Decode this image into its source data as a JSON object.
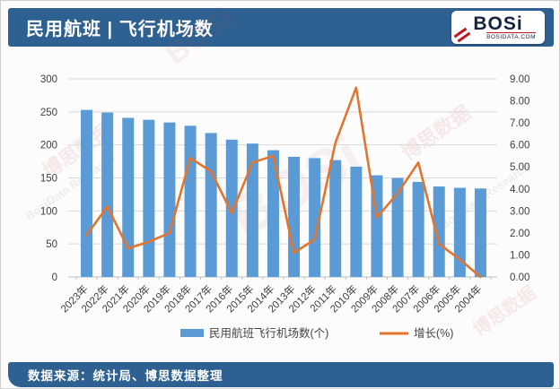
{
  "header": {
    "title": "民用航班 | 飞行机场数",
    "logo": {
      "wordmark": "BOSi",
      "domain": "BOSIDATA.COM"
    }
  },
  "footer": {
    "source_text": "数据来源：统计局、博思数据整理"
  },
  "watermark": {
    "text_cn": "博思数据",
    "text_en": "BosiData Research",
    "logo_text": "BOSi"
  },
  "colors": {
    "bar": "#5B9BD5",
    "line": "#E2752E",
    "header_bg": "#2e6191",
    "grid": "#d9d9d9",
    "axis_text": "#404040"
  },
  "chart_data": {
    "type": "bar",
    "combo": "bar+line",
    "title": "民用航班 | 飞行机场数",
    "categories": [
      "2023年",
      "2022年",
      "2021年",
      "2020年",
      "2019年",
      "2018年",
      "2017年",
      "2016年",
      "2015年",
      "2014年",
      "2013年",
      "2012年",
      "2011年",
      "2010年",
      "2009年",
      "2008年",
      "2007年",
      "2006年",
      "2005年",
      "2004年"
    ],
    "series": [
      {
        "name": "民用航班飞行机场数(个)",
        "type": "bar",
        "axis": "left",
        "values": [
          253,
          249,
          241,
          238,
          234,
          229,
          218,
          208,
          202,
          192,
          182,
          180,
          177,
          167,
          154,
          150,
          144,
          137,
          135,
          134
        ]
      },
      {
        "name": "增长(%)",
        "type": "line",
        "axis": "right",
        "values": [
          1.9,
          3.2,
          1.3,
          1.6,
          2.0,
          5.4,
          4.8,
          2.9,
          5.2,
          5.5,
          1.1,
          1.7,
          6.1,
          8.6,
          2.7,
          3.8,
          5.2,
          1.5,
          0.8,
          0.0
        ]
      }
    ],
    "left_axis": {
      "min": 0,
      "max": 300,
      "step": 50
    },
    "right_axis": {
      "min": 0,
      "max": 9,
      "step": 1,
      "decimals": 2
    },
    "grid": true,
    "legend_position": "bottom"
  }
}
